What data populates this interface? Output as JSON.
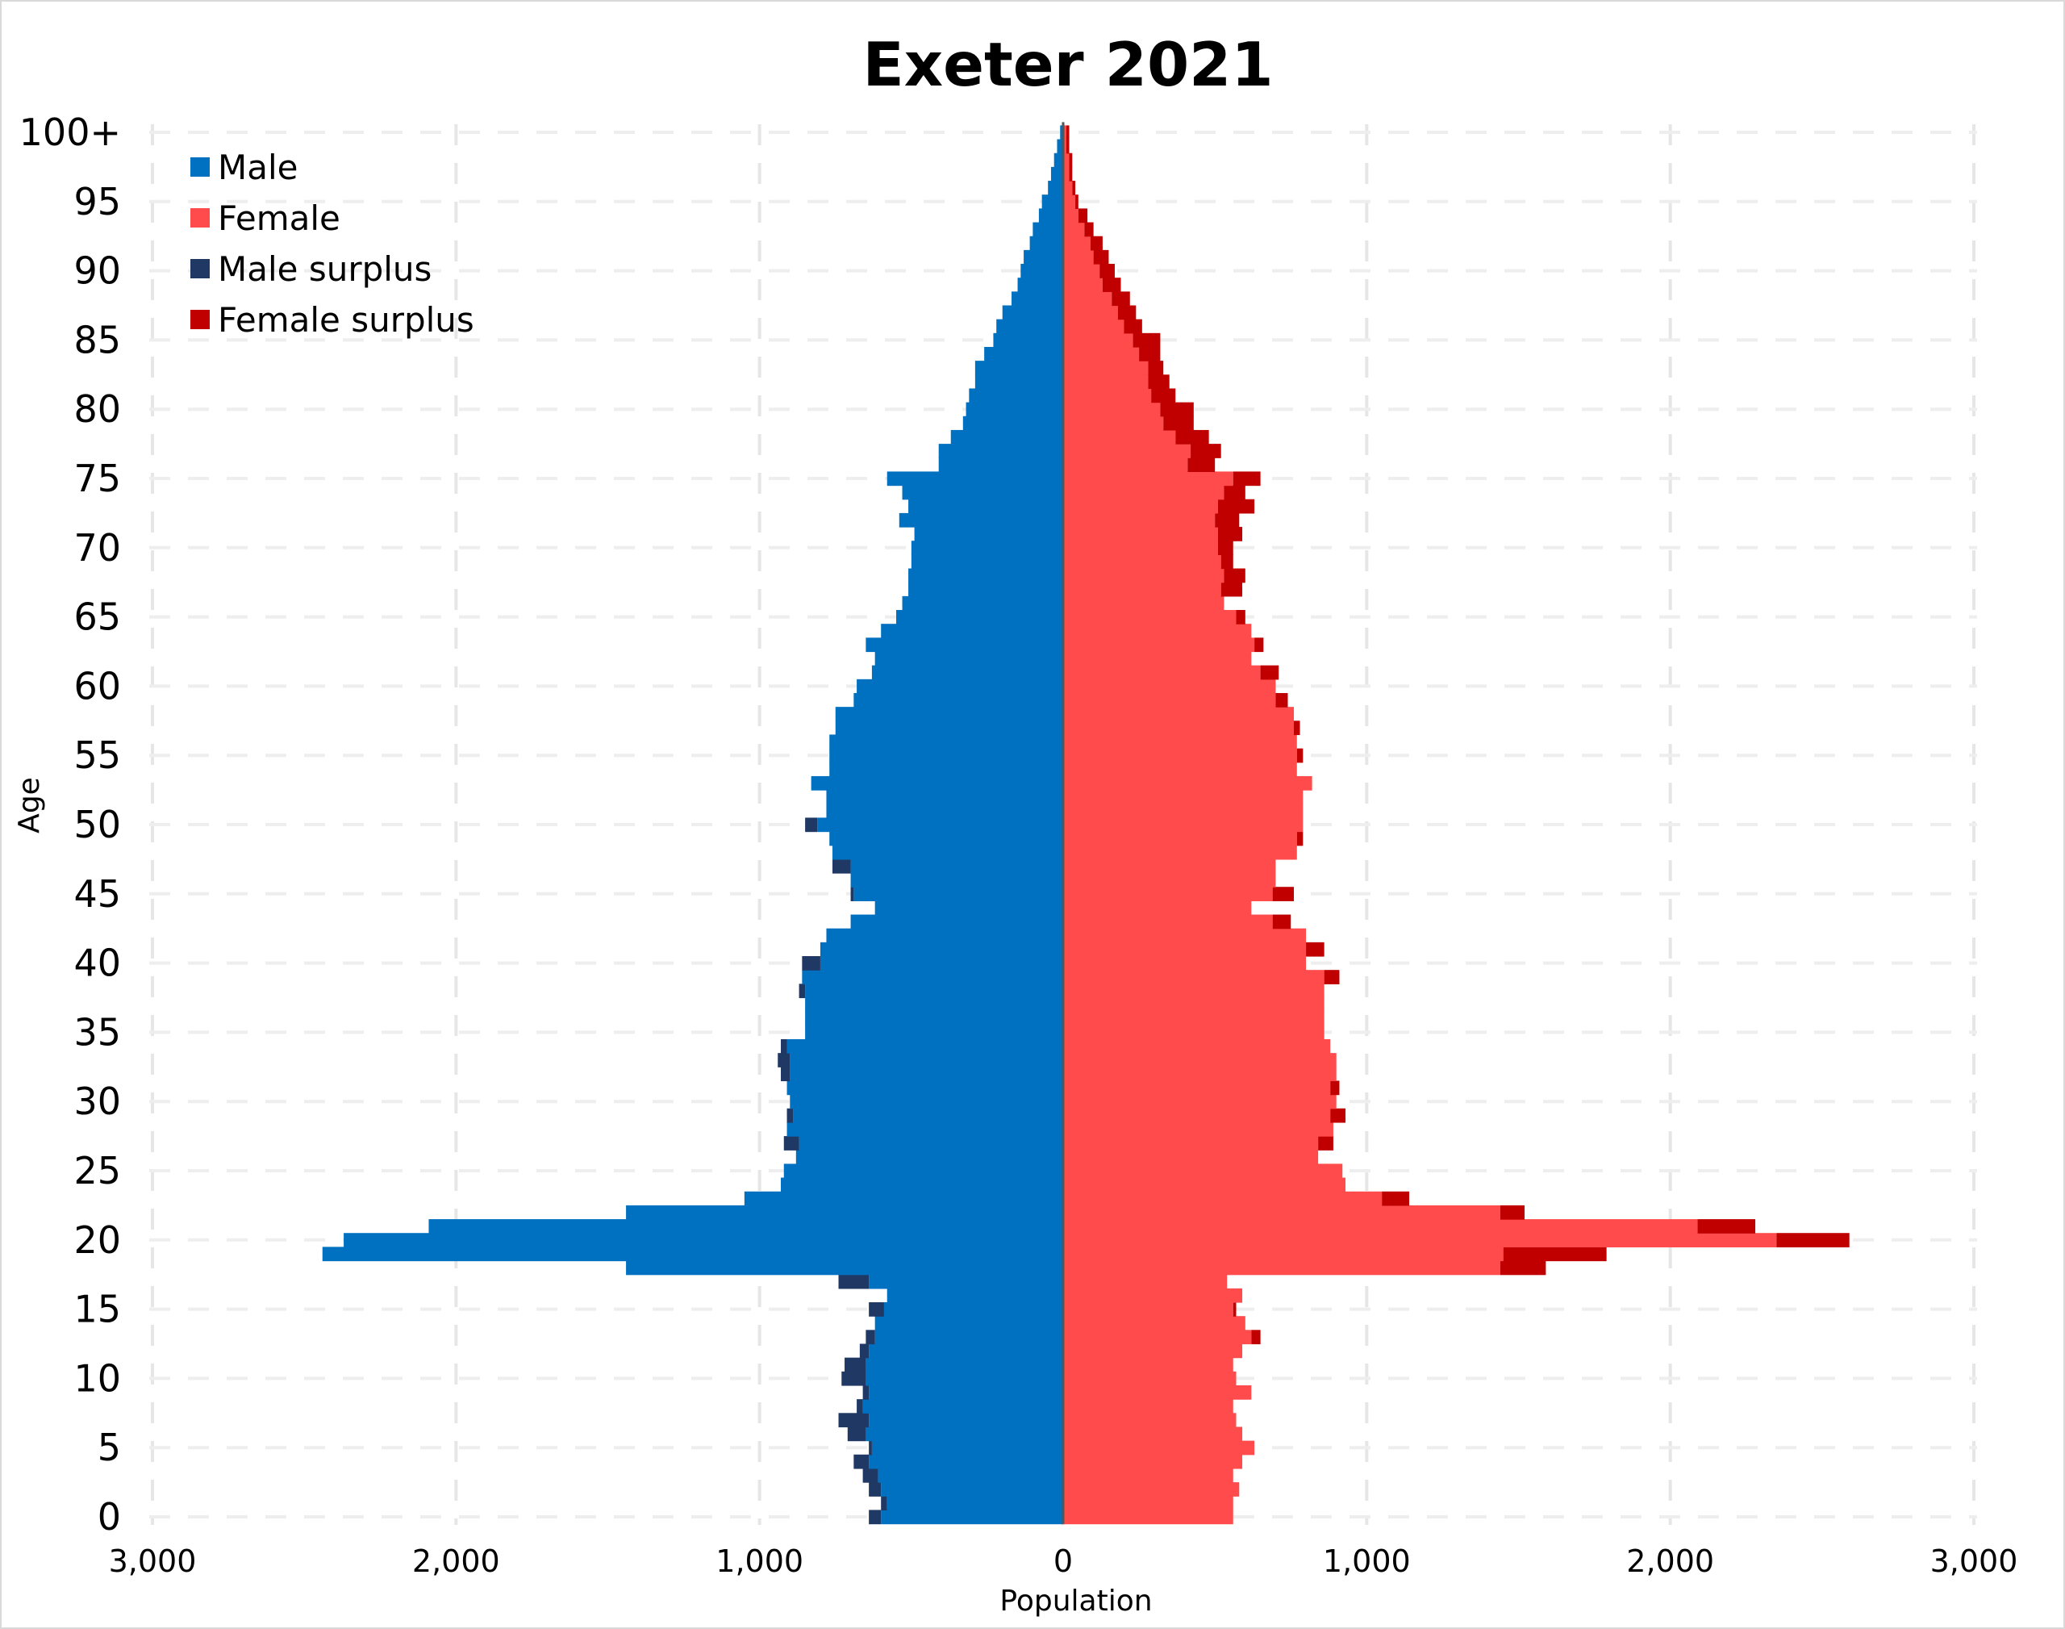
{
  "chart_data": {
    "type": "bar",
    "orientation": "horizontal",
    "title": "Exeter 2021",
    "xlabel": "Population",
    "ylabel": "Age",
    "xlim": [
      -3000,
      3000
    ],
    "xticks": [
      -3000,
      -2000,
      -1000,
      0,
      1000,
      2000,
      3000
    ],
    "xtick_labels": [
      "3,000",
      "2,000",
      "1,000",
      "0",
      "1,000",
      "2,000",
      "3,000"
    ],
    "ylim": [
      0,
      100
    ],
    "yticks": [
      0,
      5,
      10,
      15,
      20,
      25,
      30,
      35,
      40,
      45,
      50,
      55,
      60,
      65,
      70,
      75,
      80,
      85,
      90,
      95,
      100
    ],
    "ytick_labels": [
      "0",
      "5",
      "10",
      "15",
      "20",
      "25",
      "30",
      "35",
      "40",
      "45",
      "50",
      "55",
      "60",
      "65",
      "70",
      "75",
      "80",
      "85",
      "90",
      "95",
      "100+"
    ],
    "grid": true,
    "legend_position": "top-left",
    "categories": [
      "0",
      "1",
      "2",
      "3",
      "4",
      "5",
      "6",
      "7",
      "8",
      "9",
      "10",
      "11",
      "12",
      "13",
      "14",
      "15",
      "16",
      "17",
      "18",
      "19",
      "20",
      "21",
      "22",
      "23",
      "24",
      "25",
      "26",
      "27",
      "28",
      "29",
      "30",
      "31",
      "32",
      "33",
      "34",
      "35",
      "36",
      "37",
      "38",
      "39",
      "40",
      "41",
      "42",
      "43",
      "44",
      "45",
      "46",
      "47",
      "48",
      "49",
      "50",
      "51",
      "52",
      "53",
      "54",
      "55",
      "56",
      "57",
      "58",
      "59",
      "60",
      "61",
      "62",
      "63",
      "64",
      "65",
      "66",
      "67",
      "68",
      "69",
      "70",
      "71",
      "72",
      "73",
      "74",
      "75",
      "76",
      "77",
      "78",
      "79",
      "80",
      "81",
      "82",
      "83",
      "84",
      "85",
      "86",
      "87",
      "88",
      "89",
      "90",
      "91",
      "92",
      "93",
      "94",
      "95",
      "96",
      "97",
      "98",
      "99",
      "100+"
    ],
    "series": [
      {
        "name": "Male",
        "color": "#0070c0",
        "values": [
          600,
          580,
          600,
          610,
          640,
          630,
          650,
          640,
          660,
          640,
          650,
          650,
          640,
          620,
          620,
          590,
          580,
          640,
          1440,
          2440,
          2370,
          2090,
          1440,
          1050,
          930,
          920,
          880,
          870,
          910,
          890,
          900,
          910,
          900,
          900,
          910,
          850,
          850,
          850,
          850,
          860,
          800,
          800,
          780,
          700,
          620,
          690,
          700,
          700,
          760,
          770,
          810,
          780,
          780,
          830,
          770,
          770,
          770,
          750,
          750,
          690,
          680,
          630,
          620,
          650,
          600,
          550,
          530,
          510,
          510,
          500,
          500,
          490,
          540,
          510,
          530,
          580,
          410,
          410,
          370,
          330,
          320,
          310,
          290,
          290,
          260,
          230,
          220,
          200,
          170,
          150,
          140,
          130,
          110,
          100,
          80,
          70,
          50,
          40,
          30,
          20,
          10
        ]
      },
      {
        "name": "Female",
        "color": "#ff4b4b",
        "values": [
          560,
          560,
          580,
          560,
          590,
          630,
          590,
          570,
          560,
          620,
          570,
          560,
          590,
          620,
          600,
          560,
          590,
          540,
          1440,
          1450,
          2350,
          2090,
          1440,
          1050,
          930,
          920,
          840,
          840,
          890,
          880,
          900,
          880,
          900,
          900,
          880,
          860,
          860,
          860,
          860,
          860,
          800,
          800,
          800,
          690,
          620,
          690,
          700,
          700,
          770,
          770,
          790,
          790,
          790,
          820,
          770,
          770,
          770,
          760,
          760,
          700,
          700,
          650,
          620,
          630,
          620,
          570,
          530,
          520,
          530,
          520,
          510,
          510,
          500,
          510,
          530,
          560,
          410,
          420,
          370,
          330,
          320,
          290,
          280,
          280,
          250,
          230,
          200,
          180,
          160,
          130,
          120,
          100,
          90,
          70,
          50,
          40,
          30,
          20,
          20,
          10,
          10
        ]
      },
      {
        "name": "Male surplus",
        "color": "#203864",
        "values": [
          40,
          20,
          40,
          50,
          50,
          10,
          60,
          100,
          20,
          20,
          80,
          70,
          30,
          30,
          0,
          50,
          0,
          100,
          0,
          0,
          0,
          0,
          0,
          0,
          0,
          0,
          0,
          50,
          0,
          20,
          0,
          0,
          30,
          40,
          20,
          0,
          0,
          0,
          20,
          0,
          60,
          0,
          0,
          0,
          0,
          10,
          0,
          60,
          0,
          0,
          40,
          0,
          0,
          0,
          0,
          0,
          0,
          0,
          0,
          0,
          0,
          0,
          0,
          0,
          0,
          0,
          0,
          0,
          0,
          0,
          0,
          0,
          0,
          0,
          0,
          0,
          0,
          0,
          0,
          0,
          0,
          0,
          0,
          0,
          0,
          0,
          0,
          0,
          0,
          0,
          0,
          0,
          0,
          0,
          0,
          0,
          0,
          0,
          0,
          0,
          0
        ]
      },
      {
        "name": "Female surplus",
        "color": "#c00000",
        "values": [
          0,
          0,
          0,
          0,
          0,
          0,
          0,
          0,
          0,
          0,
          0,
          0,
          0,
          30,
          0,
          10,
          0,
          0,
          150,
          340,
          240,
          190,
          80,
          90,
          0,
          0,
          0,
          50,
          0,
          50,
          0,
          30,
          0,
          0,
          0,
          0,
          0,
          0,
          0,
          50,
          0,
          60,
          0,
          60,
          0,
          70,
          0,
          0,
          0,
          20,
          0,
          0,
          0,
          0,
          0,
          20,
          0,
          20,
          0,
          40,
          0,
          60,
          0,
          30,
          0,
          30,
          0,
          70,
          70,
          40,
          50,
          80,
          80,
          120,
          70,
          90,
          90,
          100,
          110,
          100,
          110,
          80,
          70,
          50,
          70,
          90,
          60,
          60,
          60,
          60,
          50,
          50,
          40,
          30,
          30,
          10,
          10,
          10,
          10,
          10,
          10
        ]
      }
    ]
  }
}
